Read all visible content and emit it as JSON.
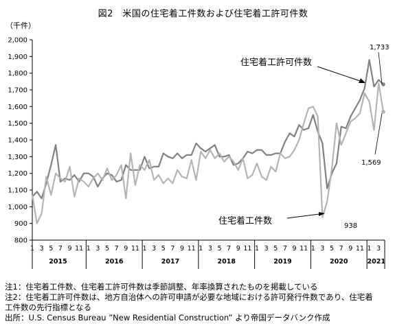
{
  "chart_data": {
    "type": "line",
    "title": "図2　米国の住宅着工件数および住宅着工許可件数",
    "ylabel": "（千件）",
    "xlabel": "",
    "ylim": [
      800,
      2000
    ],
    "yticks": [
      "800",
      "900",
      "1,000",
      "1,100",
      "1,200",
      "1,300",
      "1,400",
      "1,500",
      "1,600",
      "1,700",
      "1,800",
      "1,900",
      "2,000"
    ],
    "grid": false,
    "legend": "none",
    "month_ticks": [
      "1",
      "3",
      "5",
      "7",
      "9",
      "11",
      "1",
      "3",
      "5",
      "7",
      "9",
      "11",
      "1",
      "3",
      "5",
      "7",
      "9",
      "11",
      "1",
      "3",
      "5",
      "7",
      "9",
      "11",
      "1",
      "3",
      "5",
      "7",
      "9",
      "11",
      "1",
      "3",
      "5",
      "7",
      "9",
      "11",
      "1",
      "3"
    ],
    "years": [
      "2015",
      "2016",
      "2017",
      "2018",
      "2019",
      "2020",
      "2021"
    ],
    "series": [
      {
        "name": "住宅着工許可件数",
        "color": "#808080",
        "values": [
          1060,
          1090,
          1050,
          1140,
          1250,
          1370,
          1150,
          1170,
          1160,
          1190,
          1150,
          1200,
          1200,
          1180,
          1120,
          1170,
          1200,
          1190,
          1150,
          1160,
          1250,
          1220,
          1220,
          1220,
          1300,
          1230,
          1240,
          1240,
          1320,
          1300,
          1290,
          1320,
          1290,
          1310,
          1310,
          1380,
          1350,
          1330,
          1350,
          1370,
          1300,
          1300,
          1310,
          1250,
          1260,
          1290,
          1330,
          1320,
          1340,
          1340,
          1310,
          1310,
          1320,
          1320,
          1390,
          1440,
          1420,
          1490,
          1460,
          1470,
          1550,
          1450,
          1380,
          1110,
          1200,
          1260,
          1480,
          1470,
          1540,
          1590,
          1640,
          1710,
          1880,
          1720,
          1760,
          1733
        ],
        "end_label": "1,733"
      },
      {
        "name": "住宅着工件数",
        "color": "#b3b3b3",
        "values": [
          1070,
          900,
          960,
          1180,
          1070,
          1200,
          1170,
          1150,
          1240,
          1060,
          1170,
          1150,
          1120,
          1170,
          1200,
          1160,
          1230,
          1160,
          1190,
          1250,
          1050,
          1320,
          1130,
          1250,
          1220,
          1280,
          1160,
          1190,
          1140,
          1170,
          1140,
          1220,
          1180,
          1170,
          1280,
          1160,
          1330,
          1290,
          1340,
          1290,
          1320,
          1270,
          1300,
          1270,
          1220,
          1290,
          1170,
          1190,
          1260,
          1180,
          1160,
          1240,
          1210,
          1320,
          1290,
          1300,
          1340,
          1400,
          1500,
          1590,
          1600,
          1540,
          938,
          1030,
          1230,
          1500,
          1370,
          1440,
          1510,
          1530,
          1560,
          1680,
          1630,
          1460,
          1740,
          1569
        ],
        "end_label": "1,569",
        "min_label": "938"
      }
    ]
  },
  "annotations": {
    "permits": "住宅着工許可件数",
    "starts": "住宅着工件数"
  },
  "notes": [
    "注1：住宅着工件数、住宅着工許可件数は季節調整、年率換算されたものを掲載している",
    "注2：住宅着工許可件数は、地方自治体への許可申請が必要な地域における許可発行件数であり、住宅着",
    "工件数の先行指標となる",
    "出所：U.S. Census Bureau ”New Residential Construction” より帝国データバンク作成"
  ]
}
